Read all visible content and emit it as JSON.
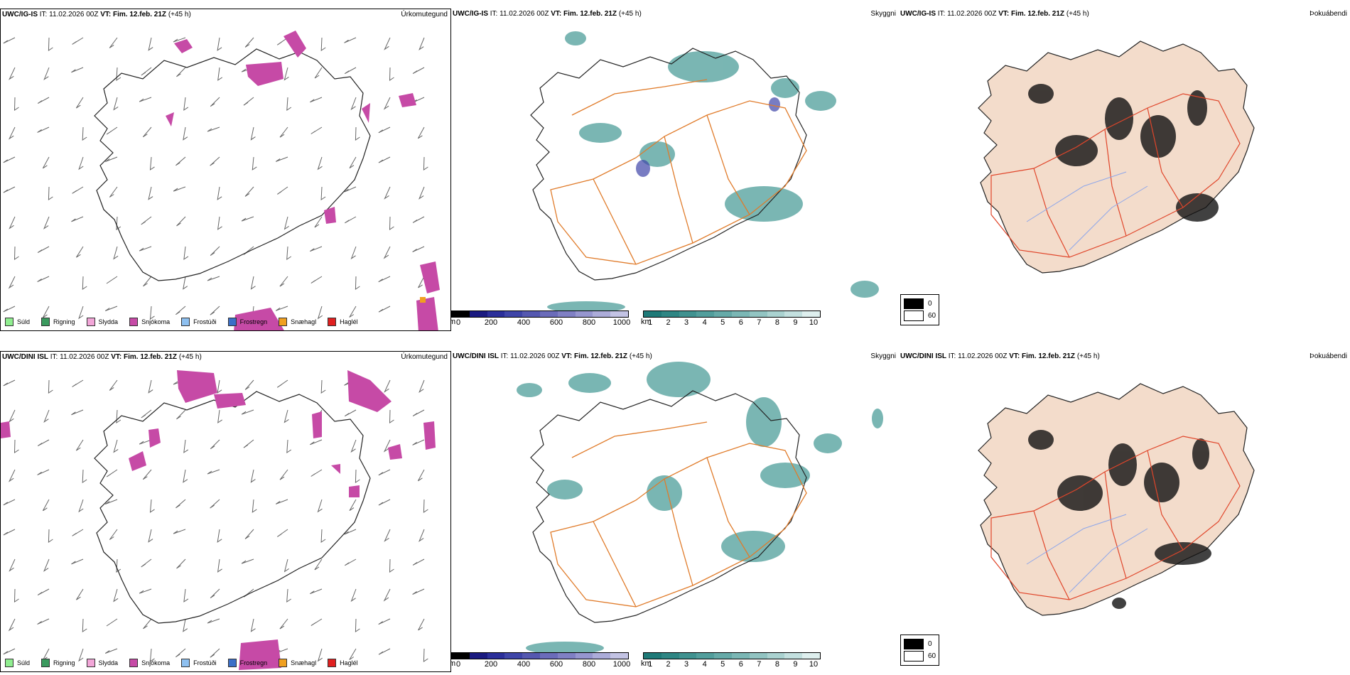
{
  "rows": [
    {
      "model": "UWC/IG-IS",
      "it_label": "IT:",
      "it_value": "11.02.2026 00Z",
      "vt_label": "VT:",
      "vt_value": "Fim. 12.feb. 21Z",
      "lead": "(+45 h)"
    },
    {
      "model": "UWC/DINI ISL",
      "it_label": "IT:",
      "it_value": "11.02.2026 00Z",
      "vt_label": "VT:",
      "vt_value": "Fim. 12.feb. 21Z",
      "lead": "(+45 h)"
    }
  ],
  "panels": {
    "precip_type": "Úrkomutegund",
    "visibility": "Skyggni",
    "fog": "Þokuábendi"
  },
  "precip_legend": [
    {
      "label": "Súld",
      "color": "#90ee90"
    },
    {
      "label": "Rigning",
      "color": "#3a9a5e"
    },
    {
      "label": "Slydda",
      "color": "#f2a6d8"
    },
    {
      "label": "Snjókoma",
      "color": "#c64aa6"
    },
    {
      "label": "Frostúði",
      "color": "#8ec0f0"
    },
    {
      "label": "Frostregn",
      "color": "#3b6fc8"
    },
    {
      "label": "Snæhagl",
      "color": "#f0a020"
    },
    {
      "label": "Haglél",
      "color": "#e02020"
    }
  ],
  "ceiling_scale": {
    "unit": "m",
    "ticks": [
      "0",
      "200",
      "400",
      "600",
      "800",
      "1000"
    ],
    "colors": [
      "#000000",
      "#1a1a80",
      "#2b2f9a",
      "#3f45a8",
      "#5558b0",
      "#6b6cba",
      "#8080c4",
      "#9696cf",
      "#acacd9",
      "#c3c3e4"
    ]
  },
  "visibility_scale": {
    "unit": "km",
    "ticks": [
      "1",
      "2",
      "3",
      "4",
      "5",
      "6",
      "7",
      "8",
      "9",
      "10"
    ],
    "colors": [
      "#1f7a78",
      "#2f8684",
      "#409290",
      "#529e9c",
      "#66aaa8",
      "#7bb7b5",
      "#92c4c2",
      "#aad2d0",
      "#c3e0df",
      "#deefee"
    ]
  },
  "fog_scale": {
    "items": [
      {
        "label": "0",
        "color": "#000000"
      },
      {
        "label": "60",
        "color": "#ffffff"
      }
    ]
  },
  "colors": {
    "snow": "#c64aa6",
    "roads": "#e07b2a",
    "coast": "#222222",
    "fog_land": "#f3dccb",
    "fog_roads": "#e0452a",
    "rivers": "#8da6ea",
    "vis_fill": "#4d9e9a"
  }
}
